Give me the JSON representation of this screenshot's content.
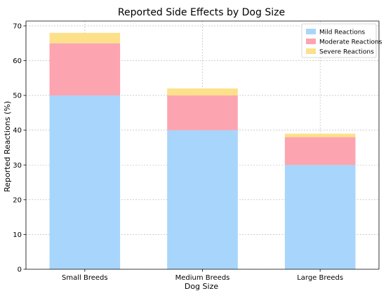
{
  "chart_data": {
    "type": "bar",
    "stacked": true,
    "title": "Reported Side Effects by Dog Size",
    "xlabel": "Dog Size",
    "ylabel": "Reported Reactions (%)",
    "categories": [
      "Small Breeds",
      "Medium Breeds",
      "Large Breeds"
    ],
    "series": [
      {
        "name": "Mild Reactions",
        "values": [
          50,
          40,
          30
        ],
        "color": "#a8d5fb"
      },
      {
        "name": "Moderate Reactions",
        "values": [
          15,
          10,
          8
        ],
        "color": "#fda4b1"
      },
      {
        "name": "Severe Reactions",
        "values": [
          3,
          2,
          1
        ],
        "color": "#fde08a"
      }
    ],
    "ylim": [
      0,
      71.4
    ],
    "yticks": [
      0,
      10,
      20,
      30,
      40,
      50,
      60,
      70
    ],
    "grid": true,
    "legend_position": "top-right"
  }
}
